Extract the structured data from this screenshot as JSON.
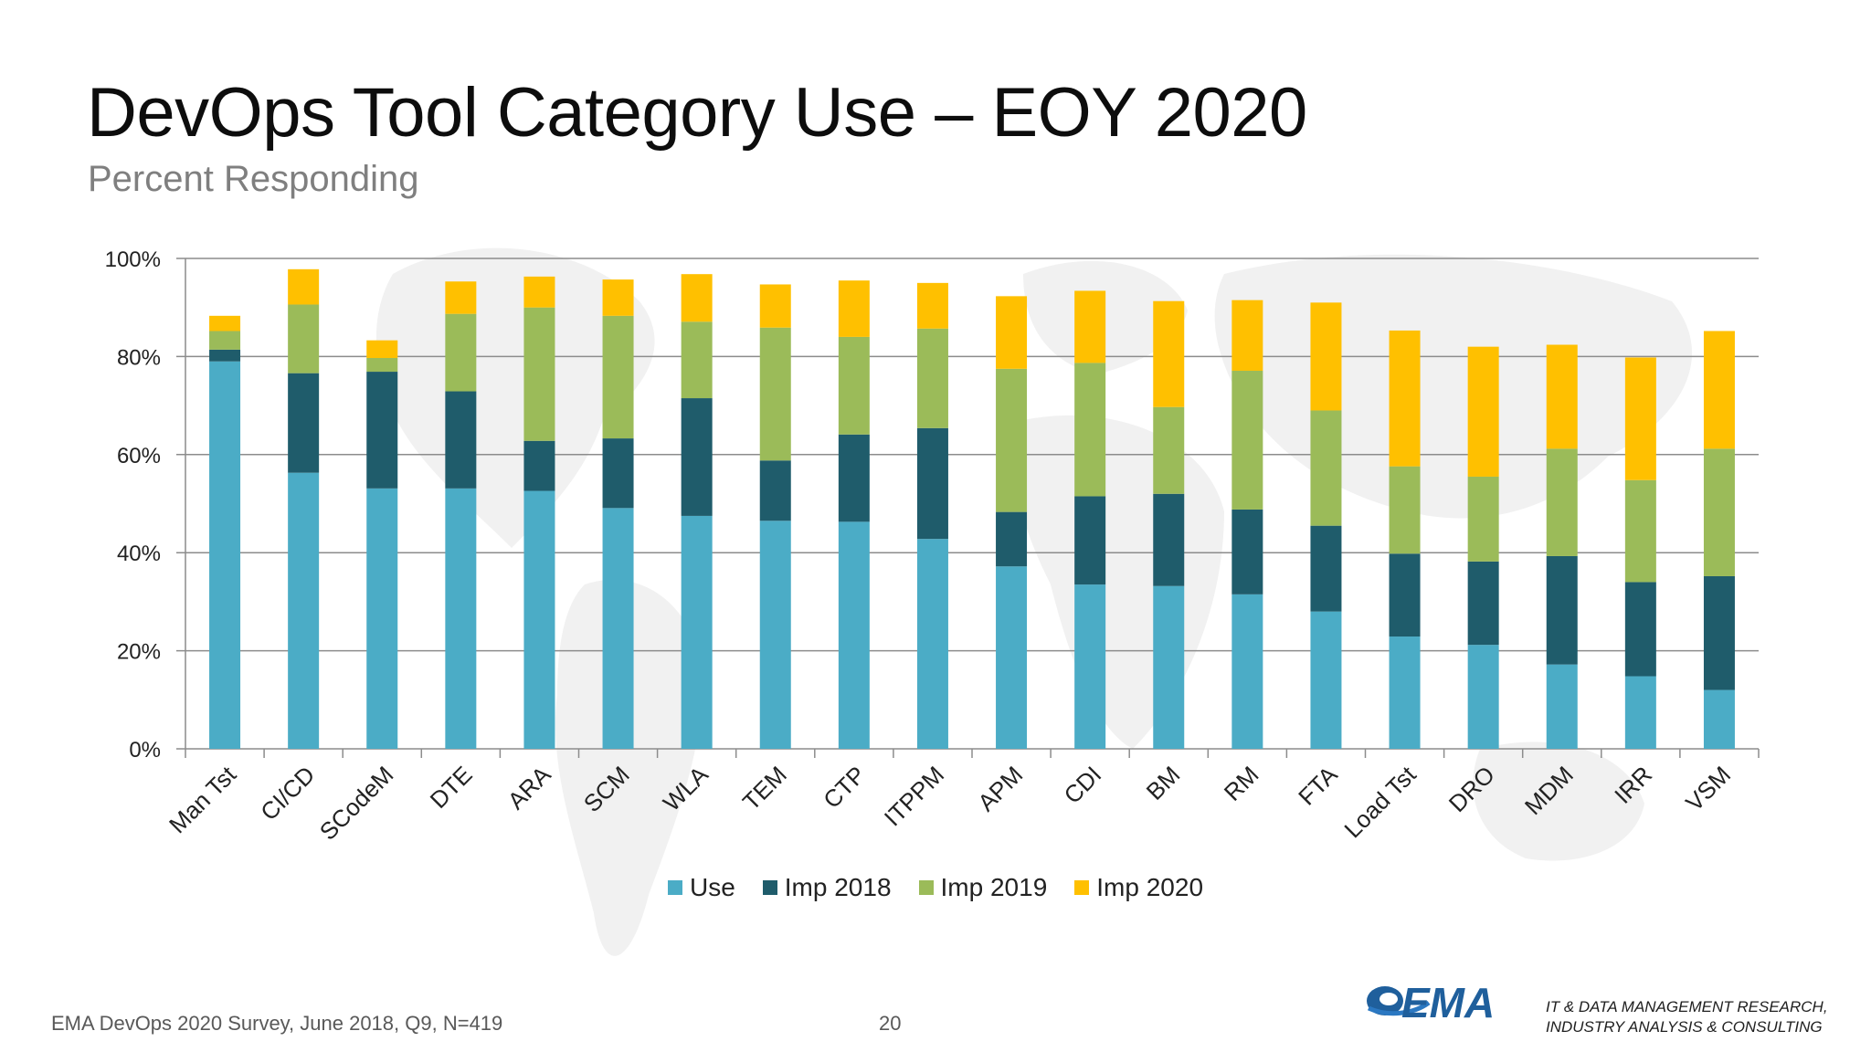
{
  "slide": {
    "title": "DevOps Tool Category Use – EOY 2020",
    "subtitle": "Percent Responding",
    "footer_source": "EMA DevOps 2020 Survey, June 2018, Q9, N=419",
    "page_number": "20",
    "logo_text": "EMA",
    "tagline_line1": "IT & DATA MANAGEMENT RESEARCH,",
    "tagline_line2": "INDUSTRY ANALYSIS & CONSULTING"
  },
  "chart_data": {
    "type": "bar",
    "stacked": true,
    "title": "",
    "xlabel": "",
    "ylabel": "",
    "ylim": [
      0,
      100
    ],
    "y_ticks": [
      "0%",
      "20%",
      "40%",
      "60%",
      "80%",
      "100%"
    ],
    "grid": true,
    "legend_position": "bottom",
    "categories": [
      "Man Tst",
      "CI/CD",
      "SCodeM",
      "DTE",
      "ARA",
      "SCM",
      "WLA",
      "TEM",
      "CTP",
      "ITPPM",
      "APM",
      "CDI",
      "BM",
      "RM",
      "FTA",
      "Load Tst",
      "DRO",
      "MDM",
      "IRR",
      "VSM"
    ],
    "series": [
      {
        "name": "Use",
        "color": "#4bacc6",
        "values": [
          79,
          56.3,
          53.1,
          53.1,
          52.6,
          49.1,
          47.5,
          46.5,
          46.3,
          42.8,
          37.2,
          33.5,
          33.2,
          31.5,
          28,
          22.9,
          21.2,
          17.2,
          14.8,
          12
        ]
      },
      {
        "name": "Imp 2018",
        "color": "#1f5c6b",
        "values": [
          2.4,
          20.3,
          23.8,
          19.8,
          10.2,
          14.2,
          24,
          12.3,
          17.8,
          22.6,
          11.1,
          18,
          18.8,
          17.3,
          17.5,
          16.9,
          17,
          22.1,
          19.2,
          23.2
        ]
      },
      {
        "name": "Imp 2019",
        "color": "#9bbb59",
        "values": [
          3.8,
          14,
          2.8,
          15.8,
          27.2,
          25,
          15.6,
          27.1,
          19.9,
          20.3,
          29.2,
          27.2,
          17.7,
          28.3,
          23.5,
          17.8,
          17.3,
          21.9,
          20.8,
          26
        ]
      },
      {
        "name": "Imp 2020",
        "color": "#ffc000",
        "values": [
          3.1,
          7.2,
          3.6,
          6.6,
          6.3,
          7.4,
          9.7,
          8.8,
          11.5,
          9.3,
          14.8,
          14.7,
          21.6,
          14.4,
          22,
          27.7,
          26.5,
          21.2,
          25,
          24
        ]
      }
    ]
  }
}
